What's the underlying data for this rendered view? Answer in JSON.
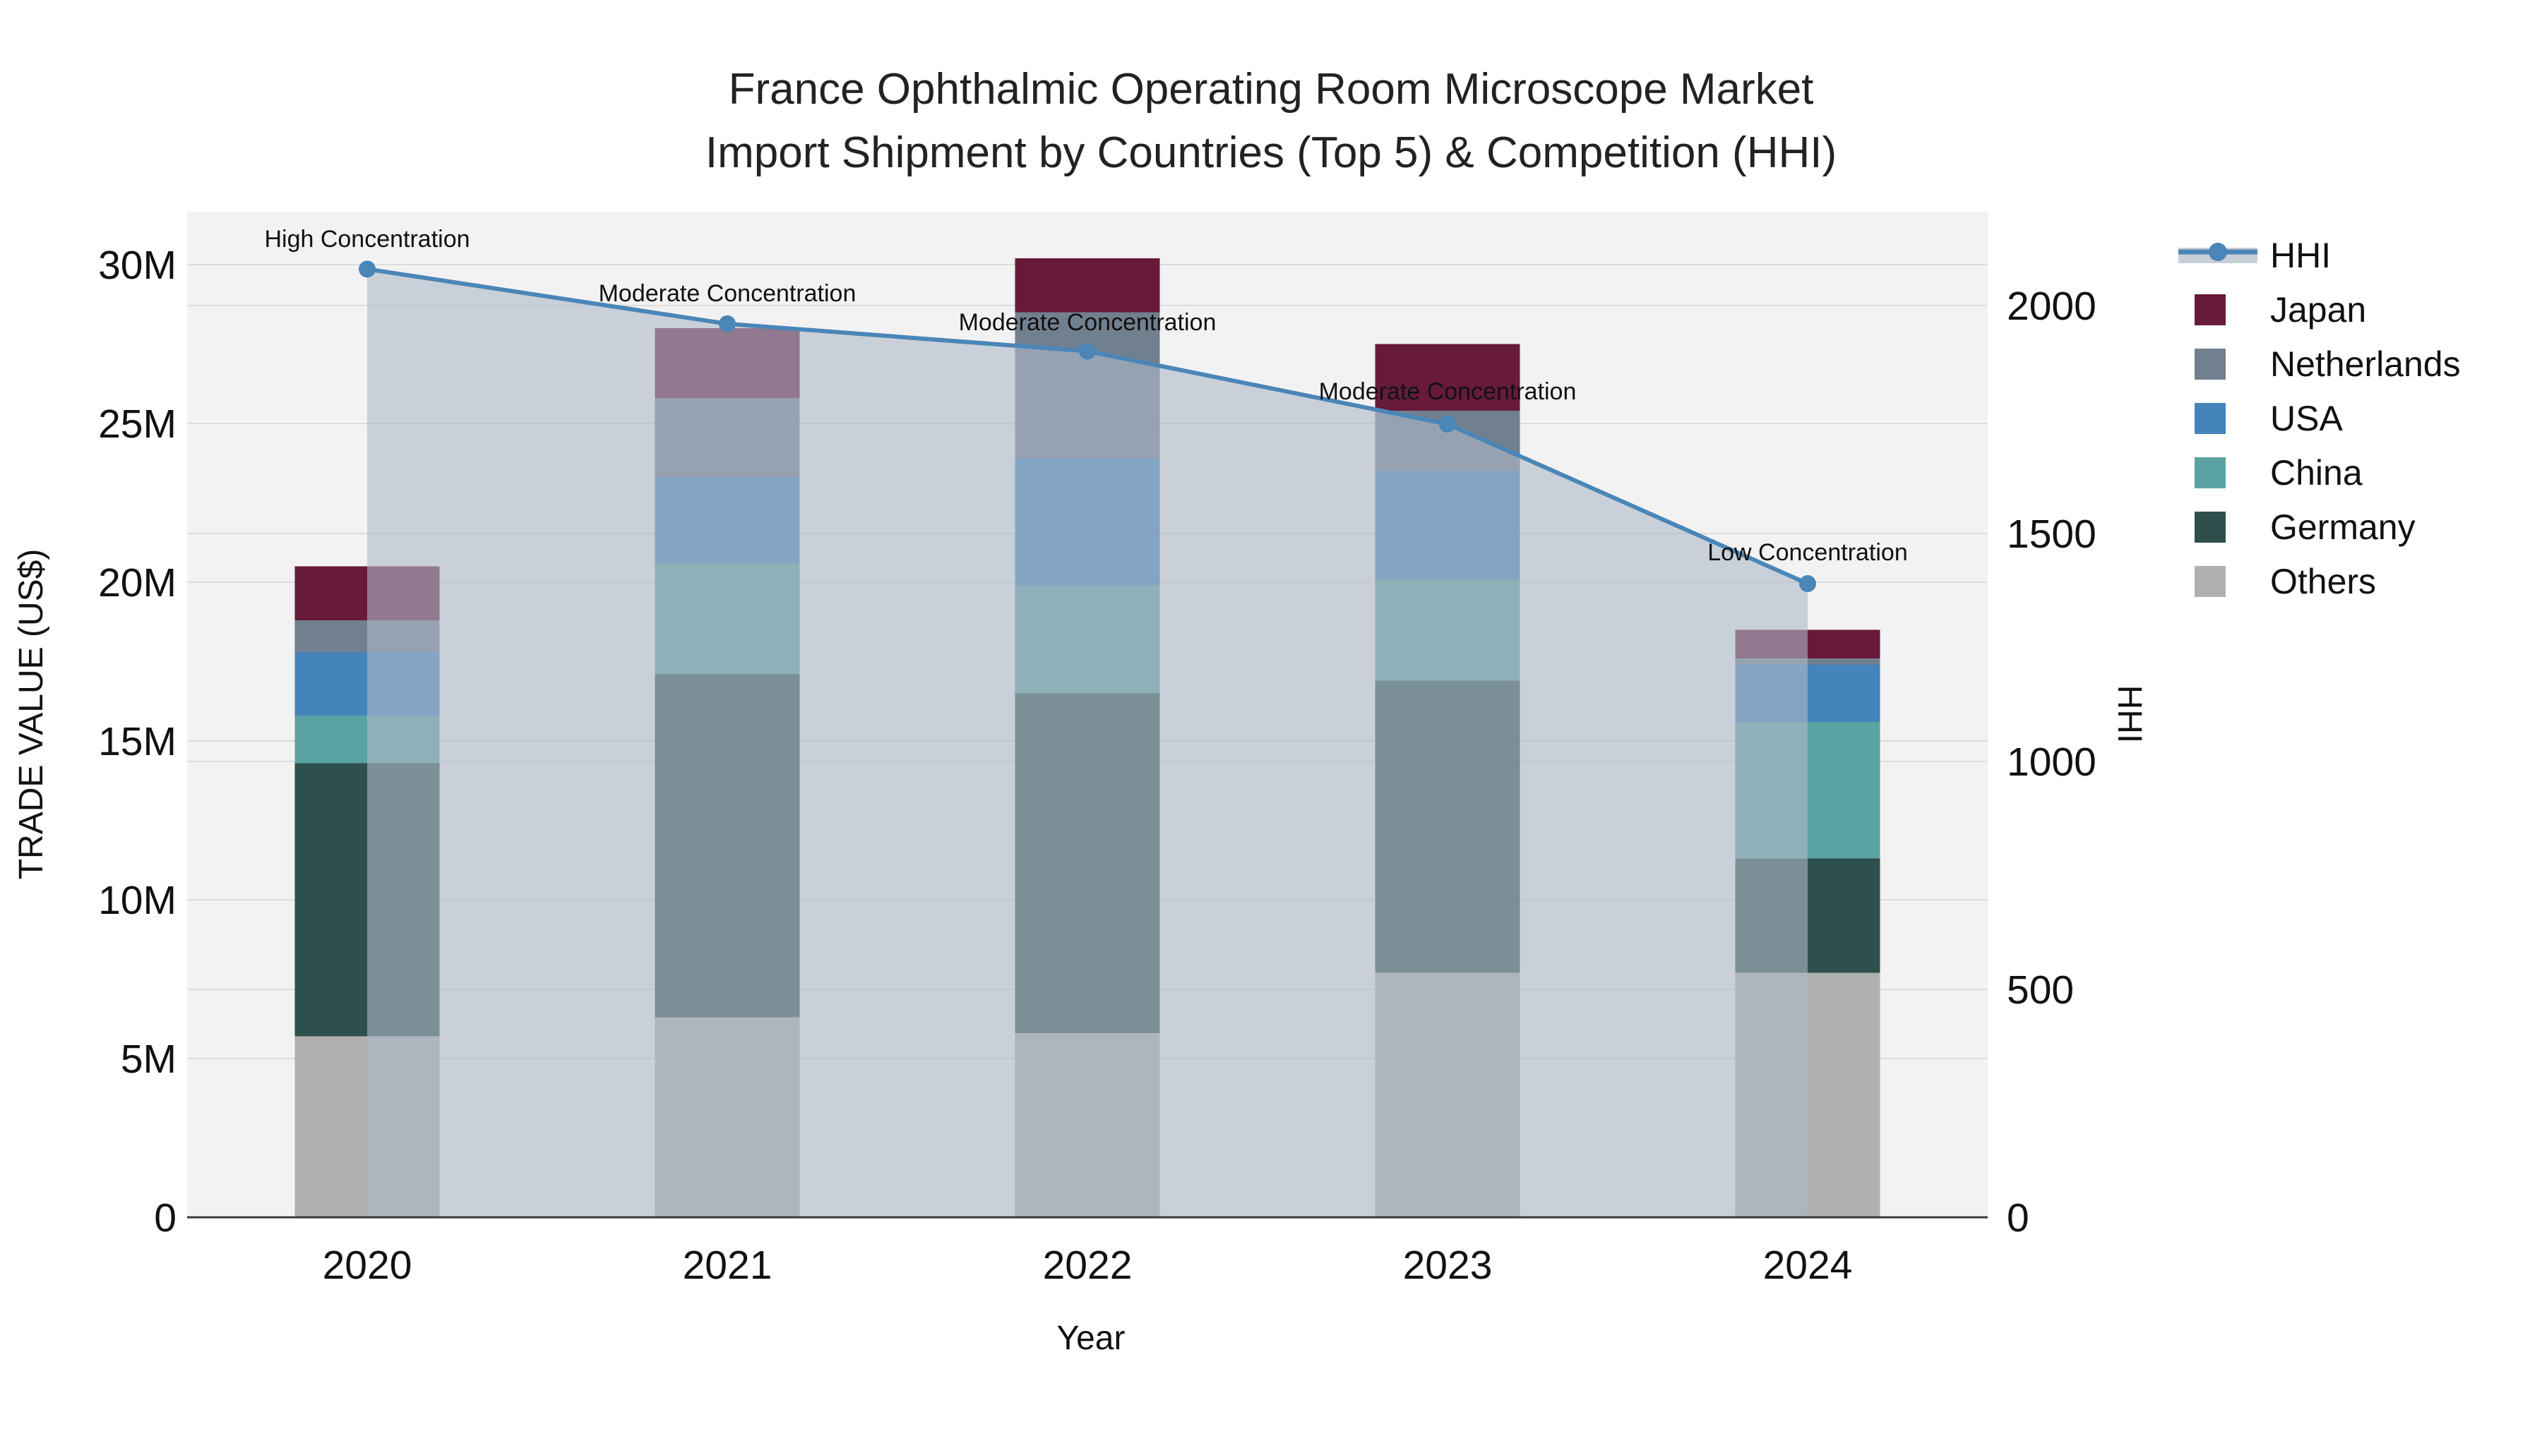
{
  "title": {
    "line1": "France Ophthalmic Operating Room Microscope Market",
    "line2": "Import Shipment by Countries (Top 5) & Competition (HHI)"
  },
  "chart_data": {
    "type": "combo-stacked-bar-with-line-area",
    "categories": [
      "2020",
      "2021",
      "2022",
      "2023",
      "2024"
    ],
    "xlabel": "Year",
    "ylabel_left": "TRADE VALUE (US$)",
    "ylabel_right": "HHI",
    "yaxis_left": {
      "ticks": [
        "0",
        "5M",
        "10M",
        "15M",
        "20M",
        "25M",
        "30M"
      ],
      "tick_values_musd": [
        0,
        5,
        10,
        15,
        20,
        25,
        30
      ],
      "range_musd": [
        0,
        31.7
      ],
      "grid": true
    },
    "yaxis_right": {
      "ticks": [
        "0",
        "500",
        "1000",
        "1500",
        "2000"
      ],
      "tick_values": [
        0,
        500,
        1000,
        1500,
        2000
      ],
      "range": [
        0,
        2200
      ],
      "grid": true
    },
    "stack_order_bottom_up": [
      "Others",
      "Germany",
      "China",
      "USA",
      "Netherlands",
      "Japan"
    ],
    "series": [
      {
        "name": "Japan",
        "color": "#681a3b",
        "values_musd": [
          1.7,
          2.2,
          1.7,
          2.1,
          0.9
        ]
      },
      {
        "name": "Netherlands",
        "color": "#71808f",
        "values_musd": [
          1.0,
          2.5,
          4.6,
          1.9,
          0.2
        ]
      },
      {
        "name": "USA",
        "color": "#4484bb",
        "values_musd": [
          2.0,
          2.7,
          4.0,
          3.4,
          1.8
        ]
      },
      {
        "name": "China",
        "color": "#5ba3a2",
        "values_musd": [
          1.5,
          3.5,
          3.4,
          3.2,
          4.3
        ]
      },
      {
        "name": "Germany",
        "color": "#2e504d",
        "values_musd": [
          8.6,
          10.8,
          10.7,
          9.2,
          3.6
        ]
      },
      {
        "name": "Others",
        "color": "#b0b0ae",
        "values_musd": [
          5.7,
          6.3,
          5.8,
          7.7,
          7.7
        ]
      }
    ],
    "bar_totals_musd": [
      20.5,
      28.0,
      30.2,
      27.5,
      18.5
    ],
    "hhi": {
      "name": "HHI",
      "color": "#4a86b8",
      "area_fill": "rgba(175,185,200,0.6)",
      "values": [
        2080,
        1960,
        1900,
        1740,
        1390
      ]
    },
    "annotations": [
      {
        "x": 520,
        "y": 350,
        "text": "High Concentration"
      },
      {
        "x": 1030,
        "y": 427,
        "text": "Moderate Concentration"
      },
      {
        "x": 1540,
        "y": 468,
        "text": "Moderate Concentration"
      },
      {
        "x": 2050,
        "y": 566,
        "text": "Moderate Concentration"
      },
      {
        "x": 2560,
        "y": 794,
        "text": "Low Concentration"
      }
    ],
    "legend_position": "right"
  },
  "legend": {
    "items": [
      {
        "label": "HHI",
        "type": "line-marker"
      },
      {
        "label": "Japan",
        "type": "swatch",
        "color": "#681a3b"
      },
      {
        "label": "Netherlands",
        "type": "swatch",
        "color": "#71808f"
      },
      {
        "label": "USA",
        "type": "swatch",
        "color": "#4484bb"
      },
      {
        "label": "China",
        "type": "swatch",
        "color": "#5ba3a2"
      },
      {
        "label": "Germany",
        "type": "swatch",
        "color": "#2e504d"
      },
      {
        "label": "Others",
        "type": "swatch",
        "color": "#b0b0ae"
      }
    ]
  },
  "colors": {
    "hhi_line": "#4a86b8",
    "hhi_area": "rgba(175,185,200,0.6)",
    "legend_band": "#c9cfd8",
    "plot_bg": "#f2f2f2",
    "grid": "#dcdcdc",
    "axis_line": "#3a3a3a",
    "text": "#111111"
  }
}
